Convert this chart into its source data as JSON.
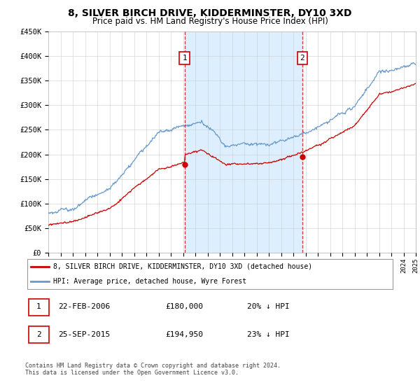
{
  "title": "8, SILVER BIRCH DRIVE, KIDDERMINSTER, DY10 3XD",
  "subtitle": "Price paid vs. HM Land Registry's House Price Index (HPI)",
  "ylim": [
    0,
    450000
  ],
  "yticks": [
    0,
    50000,
    100000,
    150000,
    200000,
    250000,
    300000,
    350000,
    400000,
    450000
  ],
  "ytick_labels": [
    "£0",
    "£50K",
    "£100K",
    "£150K",
    "£200K",
    "£250K",
    "£300K",
    "£350K",
    "£400K",
    "£450K"
  ],
  "line_color_red": "#cc0000",
  "line_color_blue": "#6699cc",
  "shade_color": "#ddeeff",
  "grid_color": "#cccccc",
  "transaction1": {
    "date": "22-FEB-2006",
    "price": 180000,
    "price_str": "£180,000",
    "pct": "20%",
    "direction": "↓",
    "label": "1"
  },
  "transaction2": {
    "date": "25-SEP-2015",
    "price": 194950,
    "price_str": "£194,950",
    "pct": "23%",
    "direction": "↓",
    "label": "2"
  },
  "legend_line1": "8, SILVER BIRCH DRIVE, KIDDERMINSTER, DY10 3XD (detached house)",
  "legend_line2": "HPI: Average price, detached house, Wyre Forest",
  "footer": "Contains HM Land Registry data © Crown copyright and database right 2024.\nThis data is licensed under the Open Government Licence v3.0.",
  "sale1_year": 2006.12,
  "sale2_year": 2015.73,
  "title_fontsize": 10,
  "subtitle_fontsize": 8.5
}
